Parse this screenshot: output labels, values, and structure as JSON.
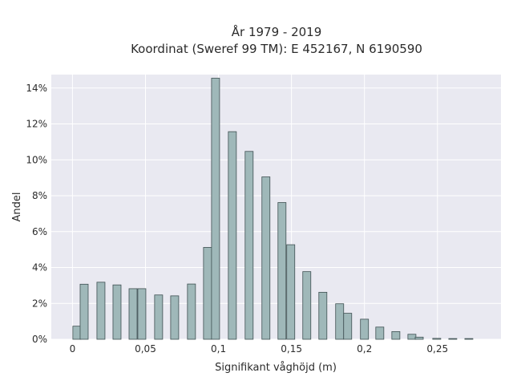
{
  "chart_data": {
    "type": "bar",
    "title": "År 1979 - 2019",
    "subtitle": "Koordinat (Sweref 99 TM): E 452167, N 6190590",
    "xlabel": "Signifikant våghöjd (m)",
    "ylabel": "Andel",
    "xlim": [
      -0.0145,
      0.2935
    ],
    "ylim": [
      0,
      0.1475
    ],
    "x_ticks": [
      0,
      0.05,
      0.1,
      0.15,
      0.2,
      0.25
    ],
    "x_tick_labels": [
      "0",
      "0,05",
      "0,1",
      "0,15",
      "0,2",
      "0,25"
    ],
    "y_ticks": [
      0,
      0.02,
      0.04,
      0.06,
      0.08,
      0.1,
      0.12,
      0.14
    ],
    "y_tick_labels": [
      "0%",
      "2%",
      "4%",
      "6%",
      "8%",
      "10%",
      "12%",
      "14%"
    ],
    "bar_width": 0.0055,
    "grid": true,
    "colors": {
      "plot_bg": "#e9e9f1",
      "grid": "#ffffff",
      "bar_fill": "#9fb8b9",
      "bar_edge": "#3f5052"
    },
    "x": [
      0.003,
      0.008,
      0.0195,
      0.0305,
      0.0415,
      0.0475,
      0.059,
      0.07,
      0.0815,
      0.0925,
      0.098,
      0.1095,
      0.121,
      0.1325,
      0.1435,
      0.1495,
      0.1605,
      0.1715,
      0.183,
      0.1885,
      0.2,
      0.2105,
      0.2215,
      0.2325,
      0.2375,
      0.2495,
      0.2605,
      0.2715
    ],
    "values": [
      0.0073,
      0.0307,
      0.0318,
      0.0303,
      0.0282,
      0.0282,
      0.0247,
      0.0242,
      0.0308,
      0.0512,
      0.1455,
      0.1157,
      0.1047,
      0.0905,
      0.0762,
      0.0527,
      0.0377,
      0.0262,
      0.0198,
      0.0145,
      0.0112,
      0.0068,
      0.0043,
      0.0028,
      0.0012,
      0.0005,
      0.0004,
      0.0004
    ]
  }
}
